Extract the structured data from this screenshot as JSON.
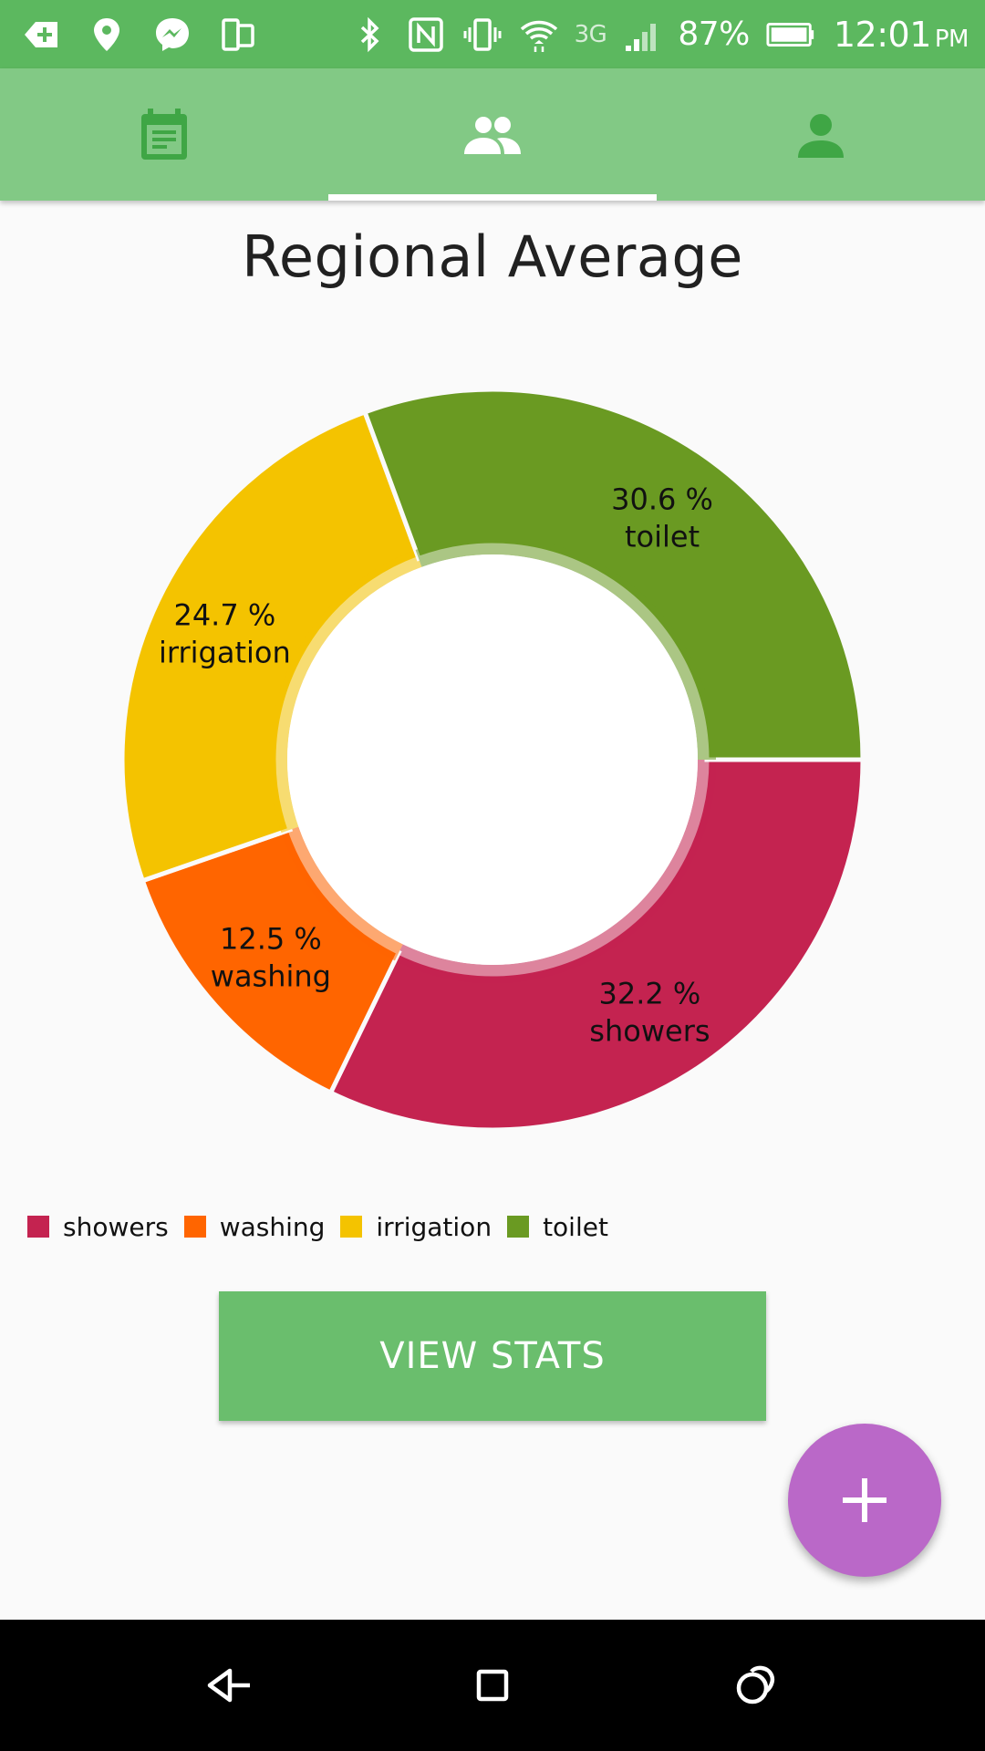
{
  "status_bar": {
    "battery_percent": "87%",
    "network": "3G",
    "time": "12:01",
    "ampm": "PM",
    "icons": [
      "add-message-icon",
      "location-icon",
      "messenger-icon",
      "screen-cast-icon",
      "bluetooth-icon",
      "nfc-icon",
      "vibrate-icon",
      "wifi-icon",
      "signal-icon",
      "battery-icon"
    ]
  },
  "tabs": [
    {
      "icon": "calendar-icon",
      "selected": false
    },
    {
      "icon": "group-icon",
      "selected": true
    },
    {
      "icon": "person-icon",
      "selected": false
    }
  ],
  "title": "Regional Average",
  "chart_data": {
    "type": "pie",
    "style": "donut",
    "title": "Regional Average",
    "categories": [
      "showers",
      "washing",
      "irrigation",
      "toilet"
    ],
    "values": [
      32.2,
      12.5,
      24.7,
      30.6
    ],
    "labels": [
      "32.2 %",
      "12.5 %",
      "24.7 %",
      "30.6 %"
    ],
    "colors": [
      "#c42350",
      "#ff6500",
      "#f4c300",
      "#6a9a22"
    ],
    "legend": "bottom-left"
  },
  "view_stats_label": "VIEW STATS",
  "fab_label": "+",
  "colors": {
    "status_bar": "#5cb85f",
    "tab_bar": "#82c985",
    "tab_icon_inactive": "#3fa645",
    "button": "#6abe6d",
    "fab": "#ba68c8"
  },
  "nav": [
    "back-icon",
    "home-icon",
    "recents-icon"
  ]
}
